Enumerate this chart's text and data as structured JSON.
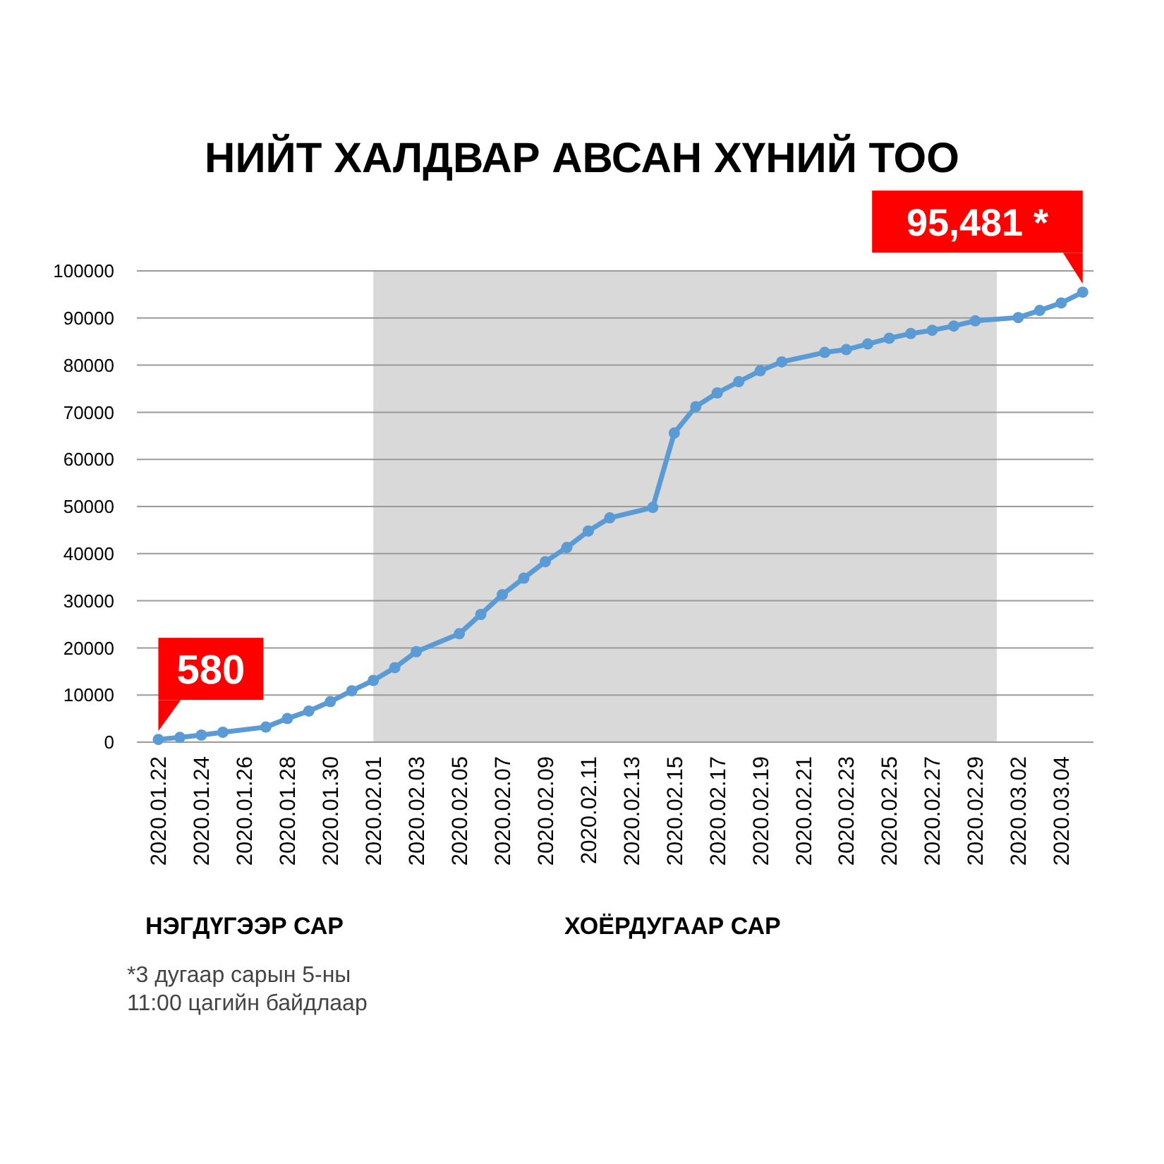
{
  "chart_data": {
    "type": "line",
    "title": "НИЙТ ХАЛДВАР АВСАН ХҮНИЙ ТОО",
    "x": [
      "2020-01-22",
      "2020-01-23",
      "2020-01-24",
      "2020-01-25",
      "2020-01-27",
      "2020-01-28",
      "2020-01-29",
      "2020-01-30",
      "2020-01-31",
      "2020-02-01",
      "2020-02-02",
      "2020-02-03",
      "2020-02-05",
      "2020-02-06",
      "2020-02-07",
      "2020-02-08",
      "2020-02-09",
      "2020-02-10",
      "2020-02-11",
      "2020-02-12",
      "2020-02-14",
      "2020-02-15",
      "2020-02-16",
      "2020-02-17",
      "2020-02-18",
      "2020-02-19",
      "2020-02-20",
      "2020-02-22",
      "2020-02-23",
      "2020-02-24",
      "2020-02-25",
      "2020-02-26",
      "2020-02-27",
      "2020-02-28",
      "2020-02-29",
      "2020-03-02",
      "2020-03-03",
      "2020-03-04",
      "2020-03-05"
    ],
    "series": [
      {
        "color": "#5b9bd5",
        "values": [
          580,
          1000,
          1500,
          2100,
          3200,
          5000,
          6600,
          8600,
          10900,
          13100,
          15800,
          19200,
          23000,
          27100,
          31300,
          34800,
          38300,
          41300,
          44800,
          47600,
          49800,
          65600,
          71200,
          74100,
          76500,
          78800,
          80700,
          82700,
          83300,
          84500,
          85700,
          86700,
          87400,
          88300,
          89400,
          90100,
          91600,
          93200,
          95481
        ]
      }
    ],
    "xlim": [
      "2020-01-21",
      "2020-03-05T12:00"
    ],
    "xticks": [
      {
        "value": "2020-01-22",
        "label": "2020.01.22"
      },
      {
        "value": "2020-01-24",
        "label": "2020.01.24"
      },
      {
        "value": "2020-01-26",
        "label": "2020.01.26"
      },
      {
        "value": "2020-01-28",
        "label": "2020.01.28"
      },
      {
        "value": "2020-01-30",
        "label": "2020.01.30"
      },
      {
        "value": "2020-02-01",
        "label": "2020.02.01"
      },
      {
        "value": "2020-02-03",
        "label": "2020.02.03"
      },
      {
        "value": "2020-02-05",
        "label": "2020.02.05"
      },
      {
        "value": "2020-02-07",
        "label": "2020.02.07"
      },
      {
        "value": "2020-02-09",
        "label": "2020.02.09"
      },
      {
        "value": "2020-02-11",
        "label": "2020.02.11"
      },
      {
        "value": "2020-02-13",
        "label": "2020.02.13"
      },
      {
        "value": "2020-02-15",
        "label": "2020.02.15"
      },
      {
        "value": "2020-02-17",
        "label": "2020.02.17"
      },
      {
        "value": "2020-02-19",
        "label": "2020.02.19"
      },
      {
        "value": "2020-02-21",
        "label": "2020.02.21"
      },
      {
        "value": "2020-02-23",
        "label": "2020.02.23"
      },
      {
        "value": "2020-02-25",
        "label": "2020.02.25"
      },
      {
        "value": "2020-02-27",
        "label": "2020.02.27"
      },
      {
        "value": "2020-02-29",
        "label": "2020.02.29"
      },
      {
        "value": "2020-03-02",
        "label": "2020.03.02"
      },
      {
        "value": "2020-03-04",
        "label": "2020.03.04"
      }
    ],
    "ylim": [
      0,
      100000
    ],
    "yticks": [
      0,
      10000,
      20000,
      30000,
      40000,
      50000,
      60000,
      70000,
      80000,
      90000,
      100000
    ],
    "grid": "y",
    "marker": "circle",
    "line_style": "solid",
    "bands": [
      {
        "axis": "x",
        "from": "2020-02-01",
        "to": "2020-03-01",
        "color": "#d9d9d9"
      }
    ],
    "annotations": [
      {
        "text": "580",
        "x": "2020-01-22",
        "y": 580
      },
      {
        "text": "95,481 *",
        "x": "2020-03-05",
        "y": 95481
      },
      "НЭГДҮГЭЭР САР",
      "ХОЁРДУГААР САР",
      "*3 дугаар сарын 5-ны\n11:00 цагийн байдлаар"
    ]
  }
}
